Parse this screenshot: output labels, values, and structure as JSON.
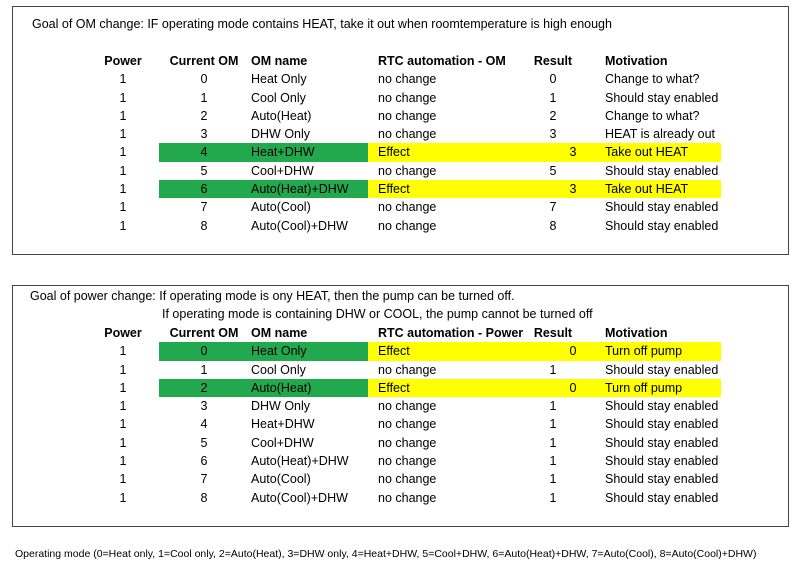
{
  "table1": {
    "goal": "Goal of OM change:  IF operating mode contains HEAT, take it out when roomtemperature is high enough",
    "headers": [
      "Power",
      "Current OM",
      "OM name",
      "RTC automation - OM",
      "Result",
      "Motivation"
    ],
    "rows": [
      {
        "power": "1",
        "om": "0",
        "name": "Heat Only",
        "rtc": "no change",
        "result": "0",
        "motivation": "Change to what?",
        "highlight": false
      },
      {
        "power": "1",
        "om": "1",
        "name": "Cool Only",
        "rtc": "no change",
        "result": "1",
        "motivation": "Should stay enabled",
        "highlight": false
      },
      {
        "power": "1",
        "om": "2",
        "name": "Auto(Heat)",
        "rtc": "no change",
        "result": "2",
        "motivation": "Change to what?",
        "highlight": false
      },
      {
        "power": "1",
        "om": "3",
        "name": "DHW Only",
        "rtc": "no change",
        "result": "3",
        "motivation": "HEAT is already out",
        "highlight": false
      },
      {
        "power": "1",
        "om": "4",
        "name": "Heat+DHW",
        "rtc": "Effect",
        "result": "3",
        "motivation": "Take out HEAT",
        "highlight": true
      },
      {
        "power": "1",
        "om": "5",
        "name": "Cool+DHW",
        "rtc": "no change",
        "result": "5",
        "motivation": "Should stay enabled",
        "highlight": false
      },
      {
        "power": "1",
        "om": "6",
        "name": "Auto(Heat)+DHW",
        "rtc": "Effect",
        "result": "3",
        "motivation": "Take out HEAT",
        "highlight": true
      },
      {
        "power": "1",
        "om": "7",
        "name": "Auto(Cool)",
        "rtc": "no change",
        "result": "7",
        "motivation": "Should stay enabled",
        "highlight": false
      },
      {
        "power": "1",
        "om": "8",
        "name": "Auto(Cool)+DHW",
        "rtc": "no change",
        "result": "8",
        "motivation": "Should stay enabled",
        "highlight": false
      }
    ]
  },
  "table2": {
    "goal_line1": "Goal of power change:  If operating mode is ony HEAT, then the pump can be turned off.",
    "goal_line2": "If operating mode is containing DHW or COOL, the pump cannot be turned off",
    "headers": [
      "Power",
      "Current OM",
      "OM name",
      "RTC automation - Power",
      "Result",
      "Motivation"
    ],
    "rows": [
      {
        "power": "1",
        "om": "0",
        "name": "Heat Only",
        "rtc": "Effect",
        "result": "0",
        "motivation": "Turn off pump",
        "highlight": true
      },
      {
        "power": "1",
        "om": "1",
        "name": "Cool Only",
        "rtc": "no change",
        "result": "1",
        "motivation": "Should stay enabled",
        "highlight": false
      },
      {
        "power": "1",
        "om": "2",
        "name": "Auto(Heat)",
        "rtc": "Effect",
        "result": "0",
        "motivation": "Turn off pump",
        "highlight": true
      },
      {
        "power": "1",
        "om": "3",
        "name": "DHW Only",
        "rtc": "no change",
        "result": "1",
        "motivation": "Should stay enabled",
        "highlight": false
      },
      {
        "power": "1",
        "om": "4",
        "name": "Heat+DHW",
        "rtc": "no change",
        "result": "1",
        "motivation": "Should stay enabled",
        "highlight": false
      },
      {
        "power": "1",
        "om": "5",
        "name": "Cool+DHW",
        "rtc": "no change",
        "result": "1",
        "motivation": "Should stay enabled",
        "highlight": false
      },
      {
        "power": "1",
        "om": "6",
        "name": "Auto(Heat)+DHW",
        "rtc": "no change",
        "result": "1",
        "motivation": "Should stay enabled",
        "highlight": false
      },
      {
        "power": "1",
        "om": "7",
        "name": "Auto(Cool)",
        "rtc": "no change",
        "result": "1",
        "motivation": "Should stay enabled",
        "highlight": false
      },
      {
        "power": "1",
        "om": "8",
        "name": "Auto(Cool)+DHW",
        "rtc": "no change",
        "result": "1",
        "motivation": "Should stay enabled",
        "highlight": false
      }
    ]
  },
  "footnote": "Operating mode (0=Heat only, 1=Cool only, 2=Auto(Heat), 3=DHW only, 4=Heat+DHW, 5=Cool+DHW, 6=Auto(Heat)+DHW, 7=Auto(Cool), 8=Auto(Cool)+DHW)",
  "colors": {
    "highlight_green": "#22a94d",
    "highlight_yellow": "#ffff00"
  }
}
